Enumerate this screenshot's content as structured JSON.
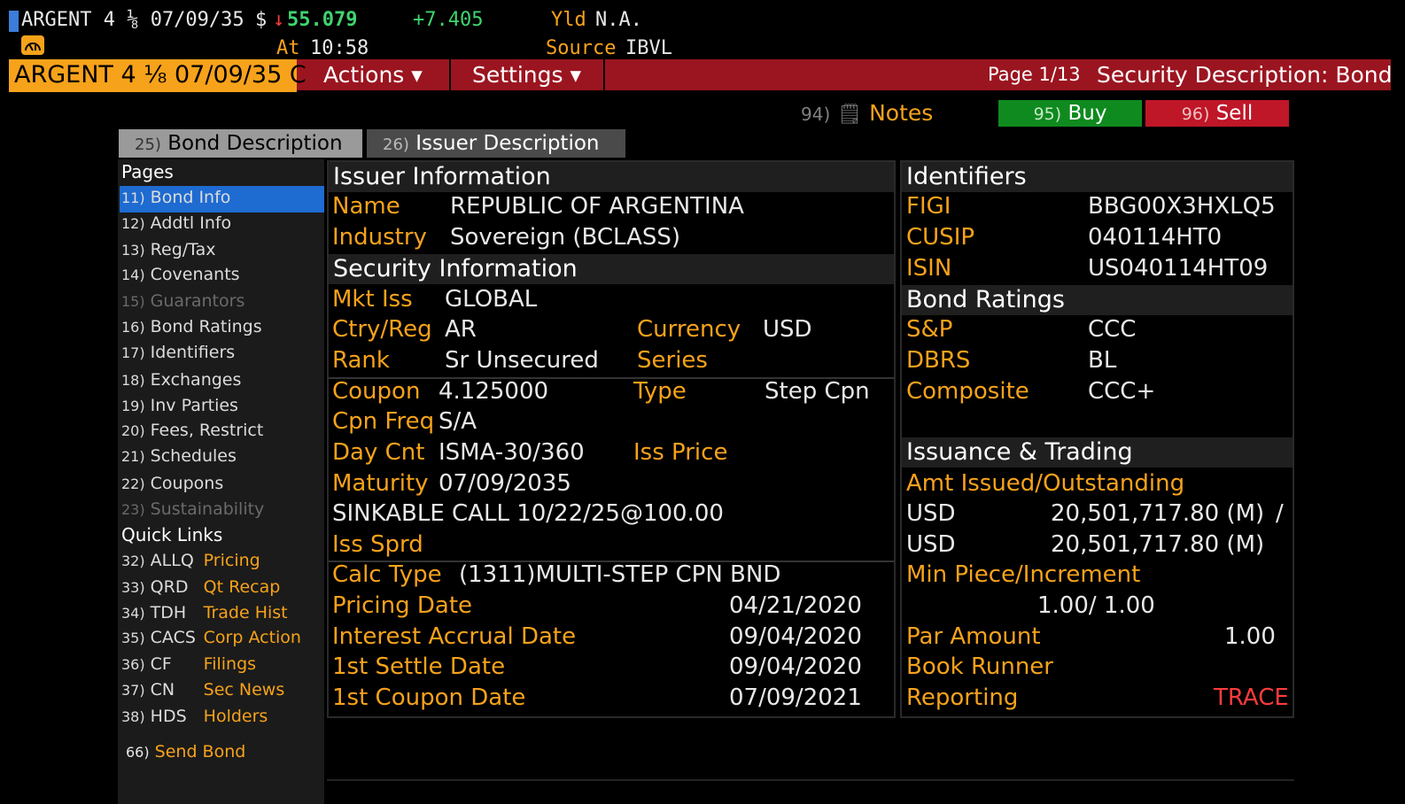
{
  "ticker": {
    "security": "ARGENT 4 ⅛ 07/09/35",
    "currency": "$",
    "arrow": "↓",
    "price": "55.079",
    "change": "+7.405",
    "yld_label": "Yld",
    "yld_value": "N.A.",
    "at_label": "At",
    "time": "10:58",
    "source_label": "Source",
    "source_value": "IBVL"
  },
  "command_bar": {
    "ticker_field": "ARGENT 4 ⅛ 07/09/35 C",
    "actions": "Actions ▾",
    "settings": "Settings ▾",
    "page": "Page 1/13",
    "screen_title": "Security Description: Bond"
  },
  "buttons": {
    "notes_num": "94)",
    "notes": "Notes",
    "buy_num": "95)",
    "buy": "Buy",
    "sell_num": "96)",
    "sell": "Sell"
  },
  "tabs": [
    {
      "num": "25)",
      "label": "Bond Description"
    },
    {
      "num": "26)",
      "label": "Issuer Description"
    }
  ],
  "nav": {
    "pages_title": "Pages",
    "pages": [
      {
        "num": "11)",
        "label": "Bond Info"
      },
      {
        "num": "12)",
        "label": "Addtl Info"
      },
      {
        "num": "13)",
        "label": "Reg/Tax"
      },
      {
        "num": "14)",
        "label": "Covenants"
      },
      {
        "num": "15)",
        "label": "Guarantors"
      },
      {
        "num": "16)",
        "label": "Bond Ratings"
      },
      {
        "num": "17)",
        "label": "Identifiers"
      },
      {
        "num": "18)",
        "label": "Exchanges"
      },
      {
        "num": "19)",
        "label": "Inv Parties"
      },
      {
        "num": "20)",
        "label": "Fees, Restrict"
      },
      {
        "num": "21)",
        "label": "Schedules"
      },
      {
        "num": "22)",
        "label": "Coupons"
      },
      {
        "num": "23)",
        "label": "Sustainability"
      }
    ],
    "quick_title": "Quick Links",
    "quick": [
      {
        "num": "32)",
        "code": "ALLQ",
        "label": "Pricing"
      },
      {
        "num": "33)",
        "code": "QRD",
        "label": "Qt Recap"
      },
      {
        "num": "34)",
        "code": "TDH",
        "label": "Trade Hist"
      },
      {
        "num": "35)",
        "code": "CACS",
        "label": "Corp Action"
      },
      {
        "num": "36)",
        "code": "CF",
        "label": "Filings"
      },
      {
        "num": "37)",
        "code": "CN",
        "label": "Sec News"
      },
      {
        "num": "38)",
        "code": "HDS",
        "label": "Holders"
      }
    ],
    "send_num": "66)",
    "send_label": "Send Bond"
  },
  "issuer": {
    "title": "Issuer Information",
    "name_label": "Name",
    "name": "REPUBLIC OF ARGENTINA",
    "industry_label": "Industry",
    "industry": "Sovereign (BCLASS)"
  },
  "security": {
    "title": "Security Information",
    "mkt_label": "Mkt Iss",
    "mkt": "GLOBAL",
    "ctry_label": "Ctry/Reg",
    "ctry": "AR",
    "currency_label": "Currency",
    "currency": "USD",
    "rank_label": "Rank",
    "rank": "Sr Unsecured",
    "series_label": "Series",
    "coupon_label": "Coupon",
    "coupon": "4.125000",
    "type_label": "Type",
    "type": "Step Cpn",
    "cpnfreq_label": "Cpn Freq",
    "cpnfreq": "S/A",
    "daycnt_label": "Day Cnt",
    "daycnt": "ISMA-30/360",
    "issprice_label": "Iss Price",
    "maturity_label": "Maturity",
    "maturity": "07/09/2035",
    "sinkable": "SINKABLE CALL 10/22/25@100.00",
    "isssprd_label": "Iss Sprd",
    "calctype_label": "Calc Type",
    "calctype": "(1311)MULTI-STEP CPN BND",
    "pricing_label": "Pricing Date",
    "pricing": "04/21/2020",
    "accrual_label": "Interest Accrual Date",
    "accrual": "09/04/2020",
    "settle_label": "1st Settle Date",
    "settle": "09/04/2020",
    "firstcpn_label": "1st Coupon Date",
    "firstcpn": "07/09/2021"
  },
  "identifiers": {
    "title": "Identifiers",
    "figi_label": "FIGI",
    "figi": "BBG00X3HXLQ5",
    "cusip_label": "CUSIP",
    "cusip": "040114HT0",
    "isin_label": "ISIN",
    "isin": "US040114HT09"
  },
  "ratings": {
    "title": "Bond Ratings",
    "sp_label": "S&P",
    "sp": "CCC",
    "dbrs_label": "DBRS",
    "dbrs": "BL",
    "comp_label": "Composite",
    "comp": "CCC+"
  },
  "issuance": {
    "title": "Issuance & Trading",
    "amt_label": "Amt Issued/Outstanding",
    "amt_ccy1": "USD",
    "amt_issued": "20,501,717.80 (M)",
    "slash": "/",
    "amt_ccy2": "USD",
    "amt_out": "20,501,717.80 (M)",
    "minpiece_label": "Min Piece/Increment",
    "minpiece": "1.00/ 1.00",
    "par_label": "Par Amount",
    "par": "1.00",
    "bookrunner_label": "Book Runner",
    "reporting_label": "Reporting",
    "reporting": "TRACE"
  },
  "colors": {
    "orange": "#f7a21b",
    "red_bar": "#9b1520",
    "buy_green": "#0f8a1e",
    "sell_red": "#bf1628",
    "selection_blue": "#1e6bd1",
    "trace_red": "#ff3b3b"
  },
  "icons": {
    "alert": "speedometer-icon",
    "notes": "note-icon"
  }
}
